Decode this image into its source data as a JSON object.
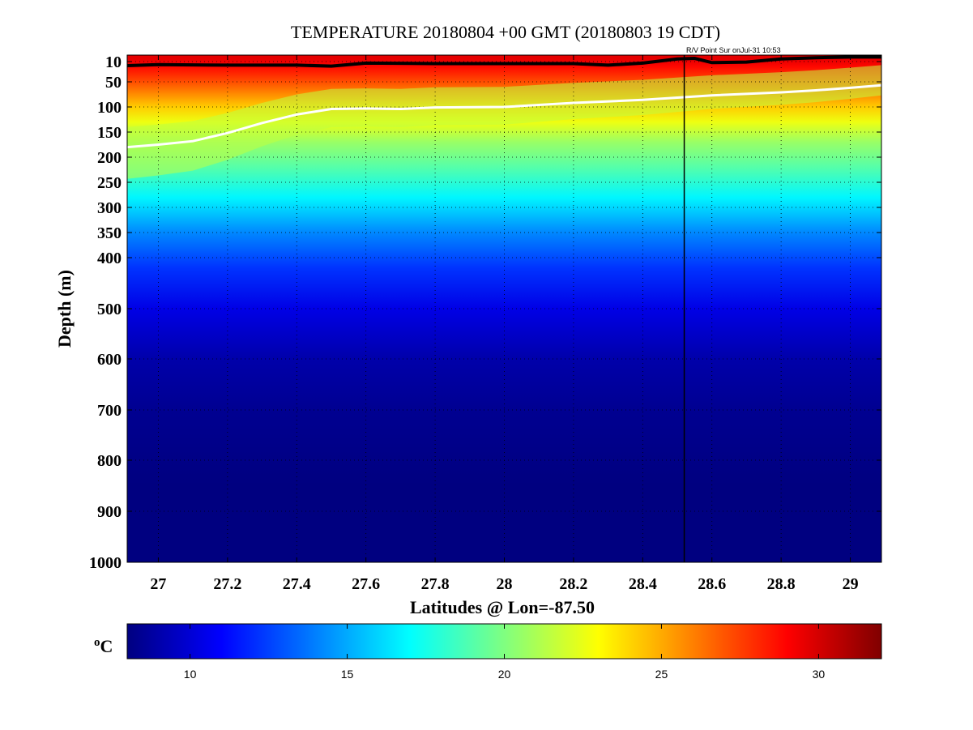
{
  "chart_data": {
    "type": "heatmap",
    "title": "TEMPERATURE 20180804 +00 GMT (20180803 19 CDT)",
    "annotation": "R/V Point Sur onJul-31 10:53",
    "xlabel": "Latitudes @ Lon=-87.50",
    "ylabel": "Depth (m)",
    "xlim": [
      26.91,
      29.09
    ],
    "ylim": [
      0,
      1000
    ],
    "y_scale": "stretched",
    "x_ticks": [
      27,
      27.2,
      27.4,
      27.6,
      27.8,
      28,
      28.2,
      28.4,
      28.6,
      28.8,
      29
    ],
    "x_tick_labels": [
      "27",
      "27.2",
      "27.4",
      "27.6",
      "27.8",
      "28",
      "28.2",
      "28.4",
      "28.6",
      "28.8",
      "29"
    ],
    "y_ticks": [
      10,
      50,
      100,
      150,
      200,
      250,
      300,
      350,
      400,
      500,
      600,
      700,
      800,
      900,
      1000
    ],
    "y_tick_labels": [
      "10",
      "50",
      "100",
      "150",
      "200",
      "250",
      "300",
      "350",
      "400",
      "500",
      "600",
      "700",
      "800",
      "900",
      "1000"
    ],
    "grid": true,
    "colorbar": {
      "unit_label": "oC",
      "range": [
        8,
        32
      ],
      "ticks": [
        10,
        15,
        20,
        25,
        30
      ],
      "tick_labels": [
        "10",
        "15",
        "20",
        "25",
        "30"
      ],
      "colormap": "jet"
    },
    "ship_track_latitude": 28.52,
    "temperature_profile": {
      "depths": [
        0,
        5,
        10,
        20,
        35,
        50,
        70,
        100,
        130,
        170,
        220,
        280,
        350,
        420,
        500,
        600,
        700,
        850,
        1000
      ],
      "temps": [
        29.6,
        29.6,
        29.4,
        28.8,
        28.0,
        27.2,
        26.0,
        24.2,
        22.6,
        20.6,
        19.0,
        16.8,
        14.2,
        12.2,
        10.4,
        9.0,
        8.4,
        8.0,
        7.8
      ]
    },
    "mixed_layer_line": {
      "color": "#000000",
      "lat": [
        26.91,
        27.0,
        27.2,
        27.4,
        27.5,
        27.6,
        27.8,
        28.0,
        28.2,
        28.3,
        28.4,
        28.5,
        28.55,
        28.6,
        28.7,
        28.8,
        28.9,
        29.0,
        29.09
      ],
      "depth": [
        18,
        16,
        17,
        17,
        19,
        13,
        14,
        14,
        14,
        17,
        13,
        6,
        5,
        12,
        11,
        6,
        4,
        3,
        3
      ]
    },
    "isotherm_line": {
      "color": "#ffffff",
      "lat": [
        26.91,
        27.0,
        27.1,
        27.2,
        27.3,
        27.4,
        27.5,
        27.6,
        27.7,
        27.8,
        28.0,
        28.2,
        28.4,
        28.6,
        28.8,
        28.9,
        29.0,
        29.09
      ],
      "depth": [
        180,
        175,
        168,
        152,
        132,
        115,
        104,
        103,
        104,
        101,
        100,
        92,
        86,
        77,
        71,
        67,
        62,
        57
      ]
    }
  }
}
